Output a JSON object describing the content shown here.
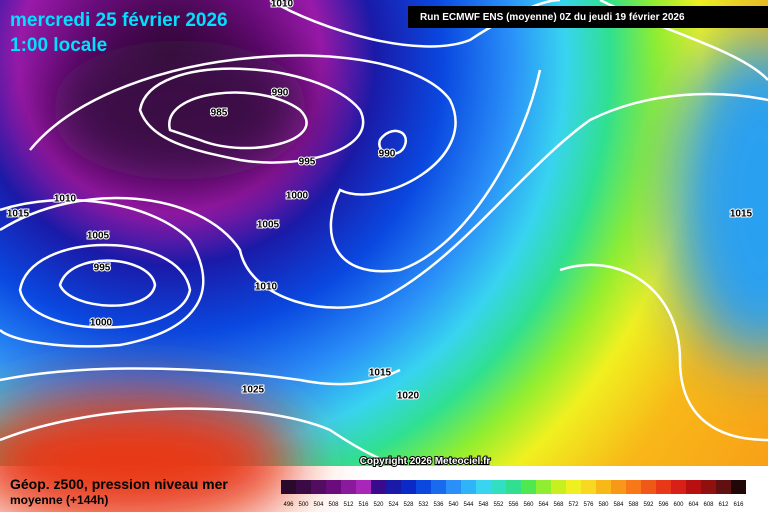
{
  "header": {
    "title": "mercredi 25 février 2026",
    "time": "1:00 locale",
    "run": "Run ECMWF ENS (moyenne) 0Z du jeudi 19 février 2026"
  },
  "isobar_labels": [
    "1010",
    "985",
    "990",
    "990",
    "995",
    "1000",
    "1010",
    "1015",
    "1005",
    "1005",
    "995",
    "1010",
    "1000",
    "1015",
    "1025",
    "1020",
    "1015"
  ],
  "copyright": "Copyright 2026 Meteociel.fr",
  "footer": {
    "title": "Géop. z500, pression niveau mer",
    "subtitle": "moyenne  (+144h)"
  },
  "scale": {
    "values": [
      496,
      500,
      504,
      508,
      512,
      516,
      520,
      524,
      528,
      532,
      536,
      540,
      544,
      548,
      552,
      556,
      560,
      564,
      568,
      572,
      576,
      580,
      584,
      588,
      592,
      596,
      600,
      604,
      608,
      612,
      616
    ],
    "colors": [
      "#2a0a2c",
      "#3a0a44",
      "#520c60",
      "#6a0c7c",
      "#8a1a9c",
      "#a826b8",
      "#3a0a8c",
      "#1a1aa8",
      "#0a2ac8",
      "#0a48e0",
      "#1a6af0",
      "#2a90f8",
      "#30b4f8",
      "#38d4f0",
      "#30e0c0",
      "#30e090",
      "#50e850",
      "#90ee30",
      "#c8f020",
      "#f0f020",
      "#f8d820",
      "#f8b818",
      "#f89818",
      "#f87818",
      "#f05818",
      "#e83818",
      "#d82018",
      "#b81010",
      "#901010",
      "#601010",
      "#200808"
    ]
  }
}
